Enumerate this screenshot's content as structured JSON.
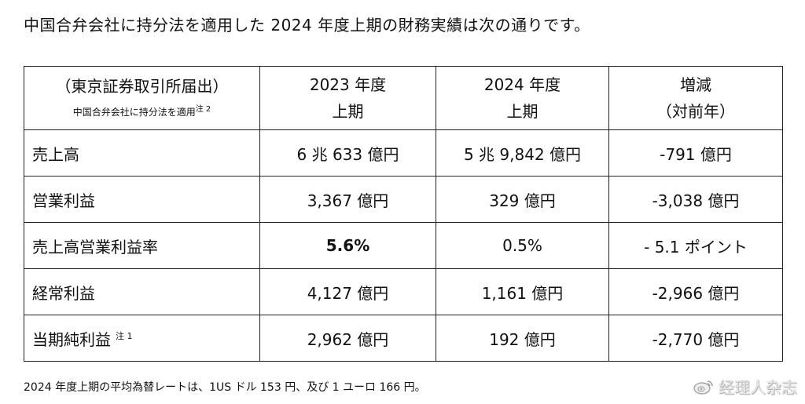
{
  "intro": "中国合弁会社に持分法を適用した 2024 年度上期の財務実績は次の通りです。",
  "table": {
    "header": {
      "col0_line1": "（東京証券取引所届出）",
      "col0_sub": "中国合弁会社に持分法を適用",
      "col0_sub_note": "注 2",
      "col1_line1": "2023 年度",
      "col1_line2": "上期",
      "col2_line1": "2024 年度",
      "col2_line2": "上期",
      "col3_line1": "増減",
      "col3_line2": "（対前年）"
    },
    "rows": [
      {
        "label": "売上高",
        "note": "",
        "fy2023": "6 兆 633 億円",
        "fy2024": "5 兆 9,842 億円",
        "change": "-791 億円"
      },
      {
        "label": "営業利益",
        "note": "",
        "fy2023": "3,367 億円",
        "fy2024": "329 億円",
        "change": "-3,038 億円"
      },
      {
        "label": "売上高営業利益率",
        "note": "",
        "fy2023": "5.6%",
        "fy2024": "0.5%",
        "change": "- 5.1 ポイント"
      },
      {
        "label": "経常利益",
        "note": "",
        "fy2023": "4,127 億円",
        "fy2024": "1,161 億円",
        "change": "-2,966 億円"
      },
      {
        "label": "当期純利益",
        "note": "注 1",
        "fy2023": "2,962 億円",
        "fy2024": "192 億円",
        "change": "-2,770 億円"
      }
    ]
  },
  "footnote": "2024 年度上期の平均為替レートは、1US ドル 153 円、及び 1 ユーロ 166 円。",
  "watermark": "经理人杂志",
  "watermark_icon": "weibo-logo-icon"
}
